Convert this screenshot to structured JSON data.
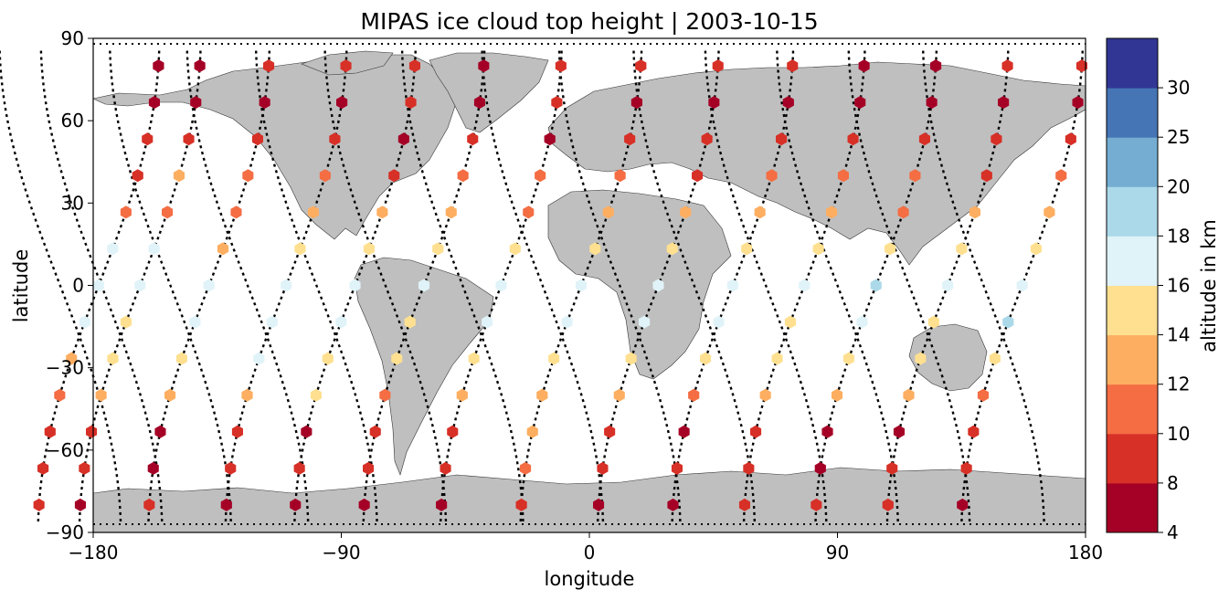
{
  "chart_data": {
    "type": "scatter",
    "title": "MIPAS ice cloud top height | 2003-10-15",
    "xlabel": "longitude",
    "ylabel": "latitude",
    "xlim": [
      -180,
      180
    ],
    "ylim": [
      -90,
      90
    ],
    "xticks": [
      -180,
      -90,
      0,
      90,
      180
    ],
    "yticks": [
      -90,
      -60,
      -30,
      0,
      30,
      60,
      90
    ],
    "xtick_labels": [
      "−180",
      "−90",
      "0",
      "90",
      "180"
    ],
    "ytick_labels": [
      "−90",
      "−60",
      "−30",
      "0",
      "30",
      "60",
      "90"
    ],
    "background": "world map with grey land masses",
    "land_color": "#bfbfbf",
    "orbit_track_style": "black dotted lines",
    "colorbar": {
      "label": "altitude in km",
      "bounds": [
        4,
        8,
        10,
        12,
        14,
        16,
        18,
        20,
        25,
        30
      ],
      "tick_labels": [
        "4",
        "8",
        "10",
        "12",
        "14",
        "16",
        "18",
        "20",
        "25",
        "30"
      ],
      "colors": [
        "#a50026",
        "#d73027",
        "#f46d43",
        "#fdae61",
        "#fee090",
        "#e0f3f8",
        "#abd9e9",
        "#74add1",
        "#4575b4",
        "#313695"
      ]
    },
    "tracks": [
      {
        "lon0": -178,
        "tops": [
          8,
          9,
          9,
          11,
          13,
          17,
          17,
          16,
          11,
          9,
          9,
          7,
          6
        ]
      },
      {
        "lon0": -163,
        "tops": [
          7,
          9,
          9,
          12,
          15,
          15,
          17,
          16,
          10,
          12,
          9,
          7,
          7
        ]
      },
      {
        "lon0": -138,
        "tops": [
          9,
          7,
          6,
          13,
          15,
          17,
          17,
          12,
          11,
          10,
          9,
          7,
          9
        ]
      },
      {
        "lon0": -110,
        "tops": [
          7,
          8,
          9,
          12,
          16,
          17,
          16,
          15,
          13,
          11,
          8,
          7,
          8
        ]
      },
      {
        "lon0": -85,
        "tops": [
          7,
          8,
          7,
          14,
          15,
          16,
          16,
          14,
          12,
          9,
          7,
          9,
          8
        ]
      },
      {
        "lon0": -60,
        "tops": [
          7,
          9,
          8,
          11,
          14,
          15,
          17,
          15,
          12,
          11,
          9,
          7,
          6
        ]
      },
      {
        "lon0": -32,
        "tops": [
          6,
          9,
          8,
          13,
          15,
          16,
          17,
          14,
          11,
          10,
          7,
          9,
          9
        ]
      },
      {
        "lon0": -3,
        "tops": [
          9,
          10,
          12,
          12,
          15,
          16,
          16,
          15,
          13,
          10,
          9,
          7,
          9
        ]
      },
      {
        "lon0": 25,
        "tops": [
          7,
          9,
          8,
          13,
          15,
          16,
          17,
          15,
          13,
          9,
          8,
          7,
          9
        ]
      },
      {
        "lon0": 52,
        "tops": [
          6,
          8,
          7,
          11,
          14,
          16,
          17,
          14,
          12,
          11,
          9,
          7,
          8
        ]
      },
      {
        "lon0": 78,
        "tops": [
          8,
          9,
          8,
          12,
          15,
          15,
          17,
          14,
          12,
          10,
          9,
          7,
          7
        ]
      },
      {
        "lon0": 104,
        "tops": [
          9,
          7,
          6,
          13,
          15,
          17,
          18,
          15,
          11,
          10,
          9,
          7,
          6
        ]
      },
      {
        "lon0": 130,
        "tops": [
          8,
          9,
          7,
          12,
          14,
          15,
          16,
          15,
          12,
          9,
          8,
          7,
          9
        ]
      },
      {
        "lon0": 157,
        "tops": [
          7,
          8,
          9,
          11,
          15,
          19,
          16,
          15,
          13,
          10,
          9,
          7,
          8
        ]
      }
    ]
  }
}
